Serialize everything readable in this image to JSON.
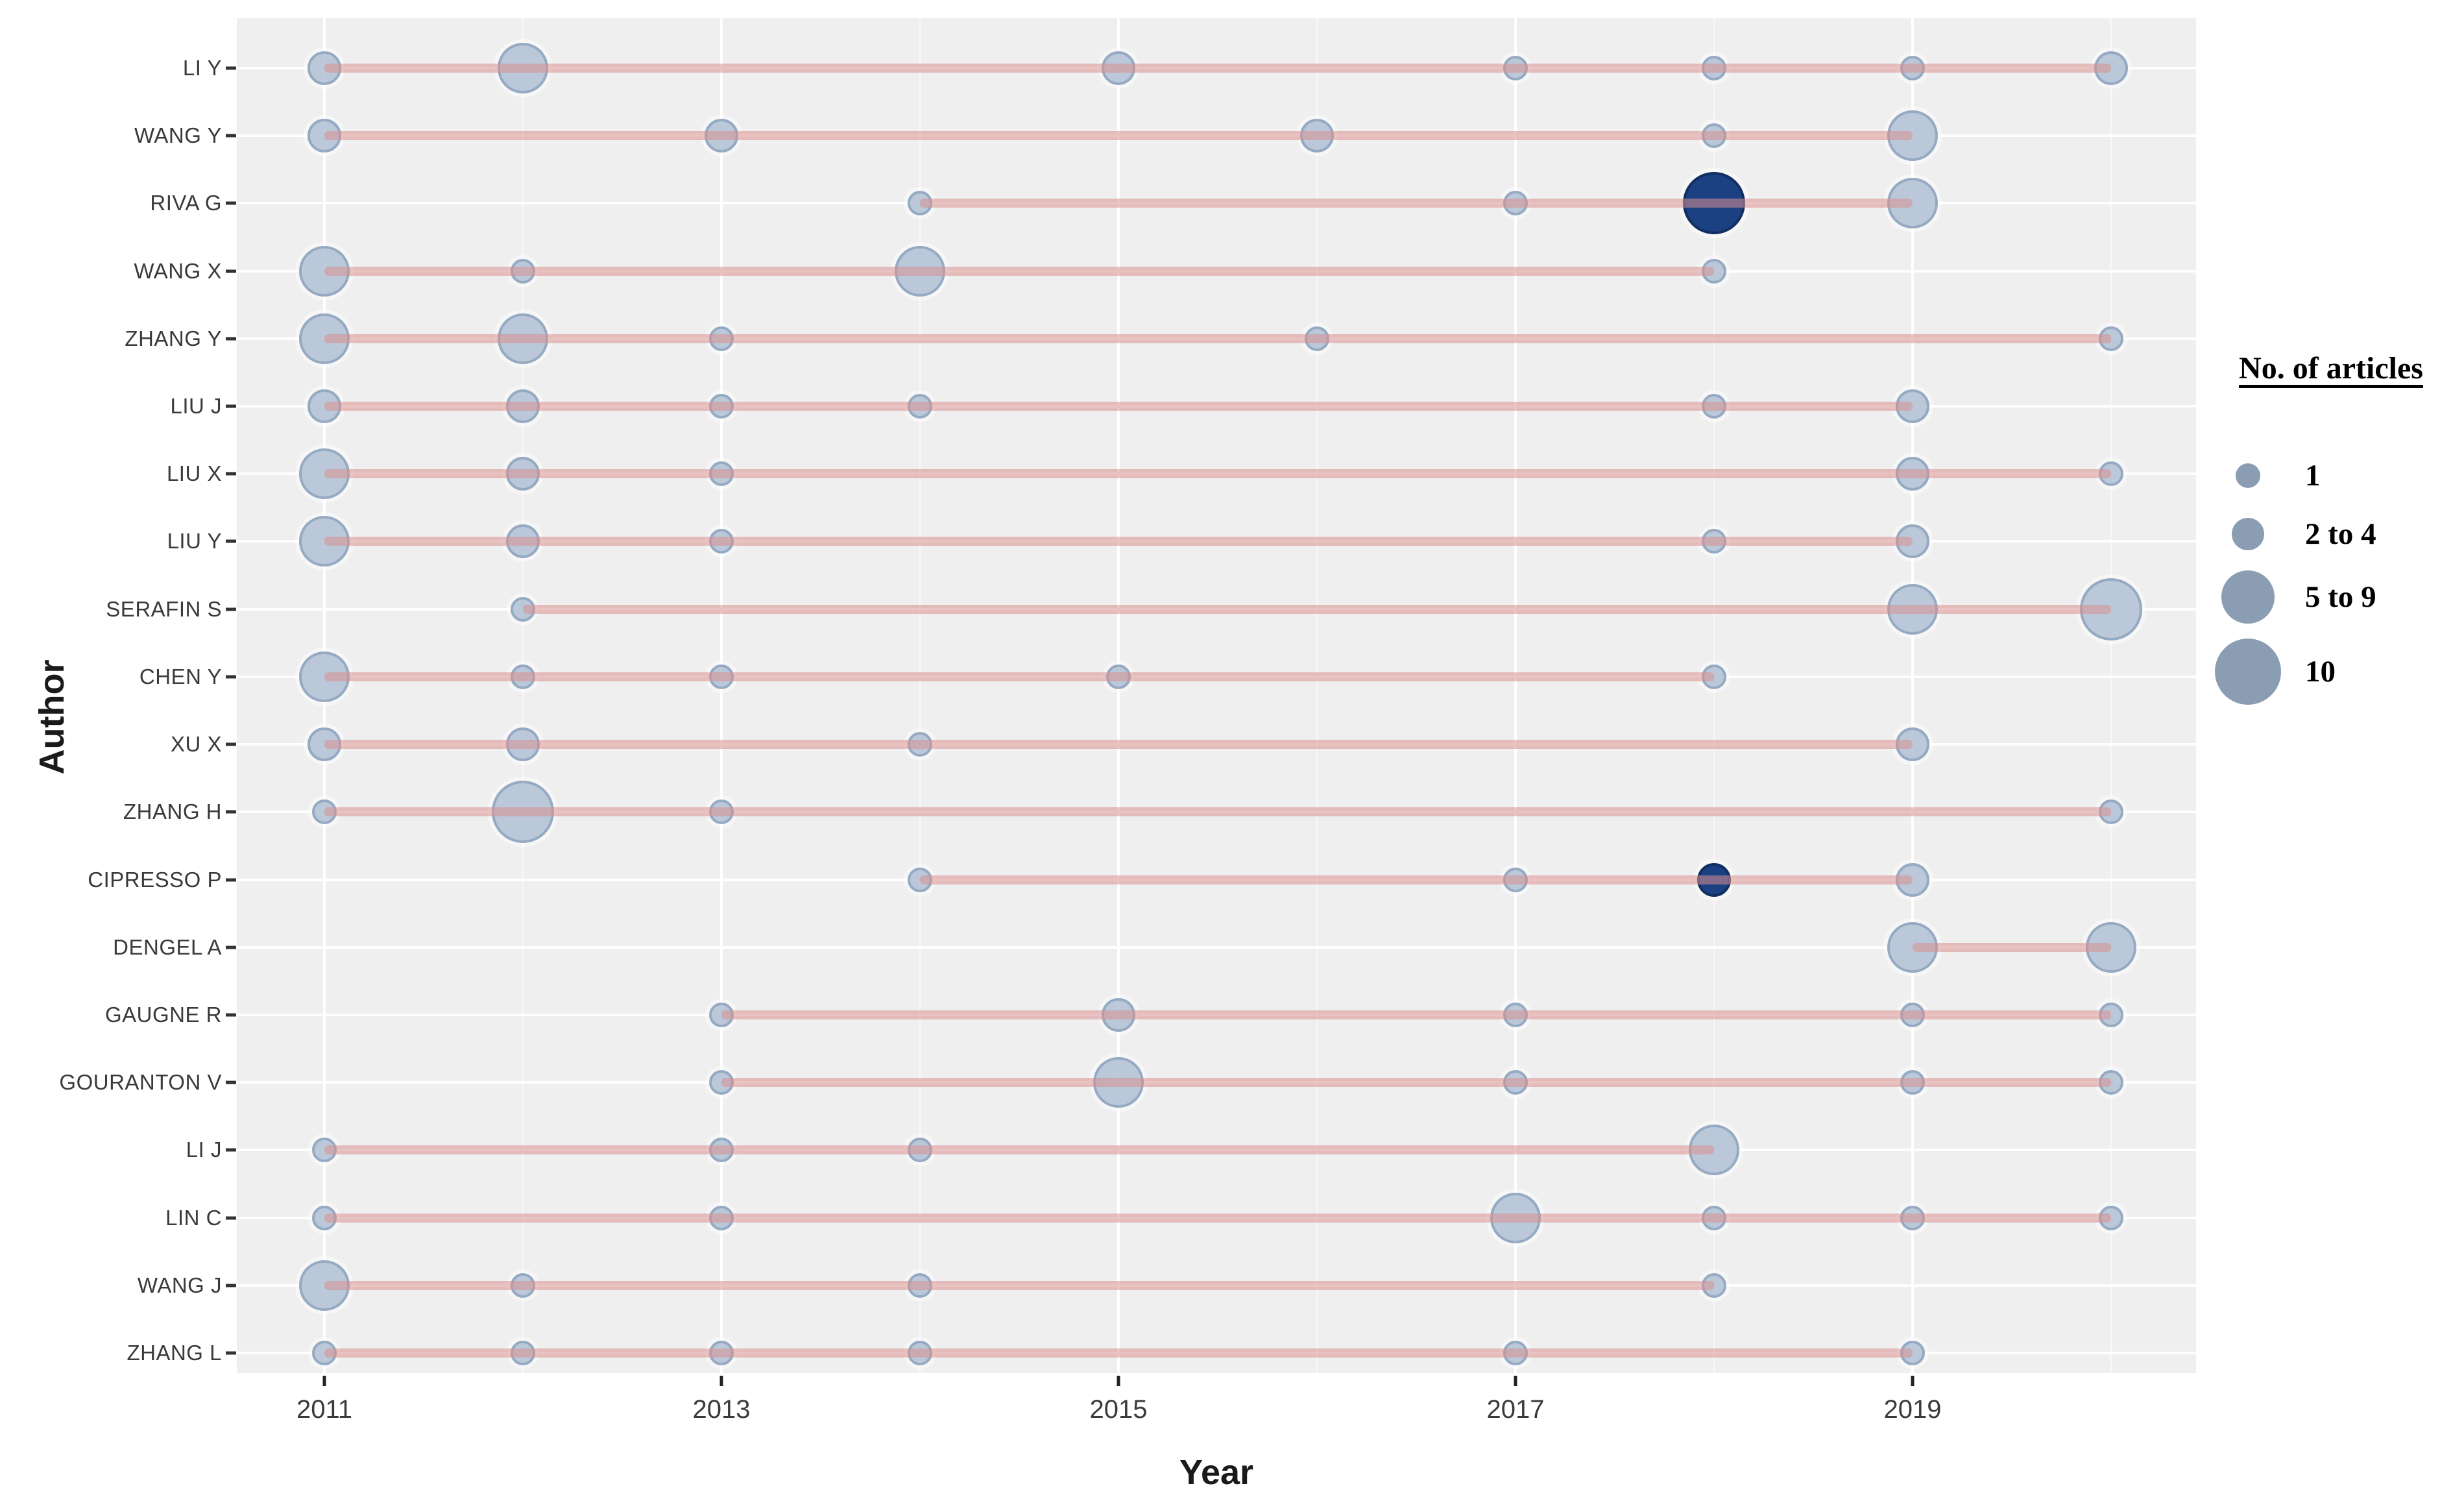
{
  "chart_data": {
    "type": "scatter",
    "title": "",
    "xlabel": "Year",
    "ylabel": "Author",
    "x_ticks": [
      2011,
      2013,
      2015,
      2017,
      2019
    ],
    "x_domain": [
      2011,
      2020
    ],
    "grid": true,
    "legend": {
      "title": "No. of articles",
      "position": "right",
      "entries": [
        {
          "label": "1",
          "size_class": "s1"
        },
        {
          "label": "2 to 4",
          "size_class": "s2"
        },
        {
          "label": "5 to 9",
          "size_class": "s3"
        },
        {
          "label": "10",
          "size_class": "s4"
        }
      ]
    },
    "colors": {
      "panel_bg": "#efeff0",
      "gridline": "#ffffff",
      "dot_fill": "#b6c5d8",
      "dot_border": "#8ea5bf",
      "highlight_fill": "#1b4183",
      "highlight_border": "#122f61",
      "range_line": "rgba(217,143,143,0.55)",
      "legend_bubble": "#8b9db3",
      "axis_text": "#3a3a3a"
    },
    "rows": [
      {
        "author": "LI Y",
        "line": [
          2011,
          2020
        ],
        "points": [
          {
            "year": 2011,
            "size": "s2"
          },
          {
            "year": 2012,
            "size": "s3"
          },
          {
            "year": 2015,
            "size": "s2"
          },
          {
            "year": 2017,
            "size": "s1"
          },
          {
            "year": 2018,
            "size": "s1"
          },
          {
            "year": 2019,
            "size": "s1"
          },
          {
            "year": 2020,
            "size": "s2"
          }
        ]
      },
      {
        "author": "WANG Y",
        "line": [
          2011,
          2019
        ],
        "points": [
          {
            "year": 2011,
            "size": "s2"
          },
          {
            "year": 2013,
            "size": "s2"
          },
          {
            "year": 2016,
            "size": "s2"
          },
          {
            "year": 2018,
            "size": "s1"
          },
          {
            "year": 2019,
            "size": "s3"
          }
        ]
      },
      {
        "author": "RIVA G",
        "line": [
          2014,
          2019
        ],
        "points": [
          {
            "year": 2014,
            "size": "s1"
          },
          {
            "year": 2017,
            "size": "s1"
          },
          {
            "year": 2018,
            "size": "s4",
            "highlight": true
          },
          {
            "year": 2019,
            "size": "s3"
          }
        ]
      },
      {
        "author": "WANG X",
        "line": [
          2011,
          2018
        ],
        "points": [
          {
            "year": 2011,
            "size": "s3"
          },
          {
            "year": 2012,
            "size": "s1"
          },
          {
            "year": 2014,
            "size": "s3"
          },
          {
            "year": 2018,
            "size": "s1"
          }
        ]
      },
      {
        "author": "ZHANG Y",
        "line": [
          2011,
          2020
        ],
        "points": [
          {
            "year": 2011,
            "size": "s3"
          },
          {
            "year": 2012,
            "size": "s3"
          },
          {
            "year": 2013,
            "size": "s1"
          },
          {
            "year": 2016,
            "size": "s1"
          },
          {
            "year": 2020,
            "size": "s1"
          }
        ]
      },
      {
        "author": "LIU J",
        "line": [
          2011,
          2019
        ],
        "points": [
          {
            "year": 2011,
            "size": "s2"
          },
          {
            "year": 2012,
            "size": "s2"
          },
          {
            "year": 2013,
            "size": "s1"
          },
          {
            "year": 2014,
            "size": "s1"
          },
          {
            "year": 2018,
            "size": "s1"
          },
          {
            "year": 2019,
            "size": "s2"
          }
        ]
      },
      {
        "author": "LIU X",
        "line": [
          2011,
          2020
        ],
        "points": [
          {
            "year": 2011,
            "size": "s3"
          },
          {
            "year": 2012,
            "size": "s2"
          },
          {
            "year": 2013,
            "size": "s1"
          },
          {
            "year": 2019,
            "size": "s2"
          },
          {
            "year": 2020,
            "size": "s1"
          }
        ]
      },
      {
        "author": "LIU Y",
        "line": [
          2011,
          2019
        ],
        "points": [
          {
            "year": 2011,
            "size": "s3"
          },
          {
            "year": 2012,
            "size": "s2"
          },
          {
            "year": 2013,
            "size": "s1"
          },
          {
            "year": 2018,
            "size": "s1"
          },
          {
            "year": 2019,
            "size": "s2"
          }
        ]
      },
      {
        "author": "SERAFIN S",
        "line": [
          2012,
          2020
        ],
        "points": [
          {
            "year": 2012,
            "size": "s1"
          },
          {
            "year": 2019,
            "size": "s3"
          },
          {
            "year": 2020,
            "size": "s4"
          }
        ]
      },
      {
        "author": "CHEN Y",
        "line": [
          2011,
          2018
        ],
        "points": [
          {
            "year": 2011,
            "size": "s3"
          },
          {
            "year": 2012,
            "size": "s1"
          },
          {
            "year": 2013,
            "size": "s1"
          },
          {
            "year": 2015,
            "size": "s1"
          },
          {
            "year": 2018,
            "size": "s1"
          }
        ]
      },
      {
        "author": "XU X",
        "line": [
          2011,
          2019
        ],
        "points": [
          {
            "year": 2011,
            "size": "s2"
          },
          {
            "year": 2012,
            "size": "s2"
          },
          {
            "year": 2014,
            "size": "s1"
          },
          {
            "year": 2019,
            "size": "s2"
          }
        ]
      },
      {
        "author": "ZHANG H",
        "line": [
          2011,
          2020
        ],
        "points": [
          {
            "year": 2011,
            "size": "s1"
          },
          {
            "year": 2012,
            "size": "s4"
          },
          {
            "year": 2013,
            "size": "s1"
          },
          {
            "year": 2020,
            "size": "s1"
          }
        ]
      },
      {
        "author": "CIPRESSO P",
        "line": [
          2014,
          2019
        ],
        "points": [
          {
            "year": 2014,
            "size": "s1"
          },
          {
            "year": 2017,
            "size": "s1"
          },
          {
            "year": 2018,
            "size": "s2",
            "highlight": true
          },
          {
            "year": 2019,
            "size": "s2"
          }
        ]
      },
      {
        "author": "DENGEL A",
        "line": [
          2019,
          2020
        ],
        "points": [
          {
            "year": 2019,
            "size": "s3"
          },
          {
            "year": 2020,
            "size": "s3"
          }
        ]
      },
      {
        "author": "GAUGNE R",
        "line": [
          2013,
          2020
        ],
        "points": [
          {
            "year": 2013,
            "size": "s1"
          },
          {
            "year": 2015,
            "size": "s2"
          },
          {
            "year": 2017,
            "size": "s1"
          },
          {
            "year": 2019,
            "size": "s1"
          },
          {
            "year": 2020,
            "size": "s1"
          }
        ]
      },
      {
        "author": "GOURANTON V",
        "line": [
          2013,
          2020
        ],
        "points": [
          {
            "year": 2013,
            "size": "s1"
          },
          {
            "year": 2015,
            "size": "s3"
          },
          {
            "year": 2017,
            "size": "s1"
          },
          {
            "year": 2019,
            "size": "s1"
          },
          {
            "year": 2020,
            "size": "s1"
          }
        ]
      },
      {
        "author": "LI J",
        "line": [
          2011,
          2018
        ],
        "points": [
          {
            "year": 2011,
            "size": "s1"
          },
          {
            "year": 2013,
            "size": "s1"
          },
          {
            "year": 2014,
            "size": "s1"
          },
          {
            "year": 2018,
            "size": "s3"
          }
        ]
      },
      {
        "author": "LIN C",
        "line": [
          2011,
          2020
        ],
        "points": [
          {
            "year": 2011,
            "size": "s1"
          },
          {
            "year": 2013,
            "size": "s1"
          },
          {
            "year": 2017,
            "size": "s3"
          },
          {
            "year": 2018,
            "size": "s1"
          },
          {
            "year": 2019,
            "size": "s1"
          },
          {
            "year": 2020,
            "size": "s1"
          }
        ]
      },
      {
        "author": "WANG J",
        "line": [
          2011,
          2018
        ],
        "points": [
          {
            "year": 2011,
            "size": "s3"
          },
          {
            "year": 2012,
            "size": "s1"
          },
          {
            "year": 2014,
            "size": "s1"
          },
          {
            "year": 2018,
            "size": "s1"
          }
        ]
      },
      {
        "author": "ZHANG L",
        "line": [
          2011,
          2019
        ],
        "points": [
          {
            "year": 2011,
            "size": "s1"
          },
          {
            "year": 2012,
            "size": "s1"
          },
          {
            "year": 2013,
            "size": "s1"
          },
          {
            "year": 2014,
            "size": "s1"
          },
          {
            "year": 2017,
            "size": "s1"
          },
          {
            "year": 2019,
            "size": "s1"
          }
        ]
      }
    ]
  }
}
